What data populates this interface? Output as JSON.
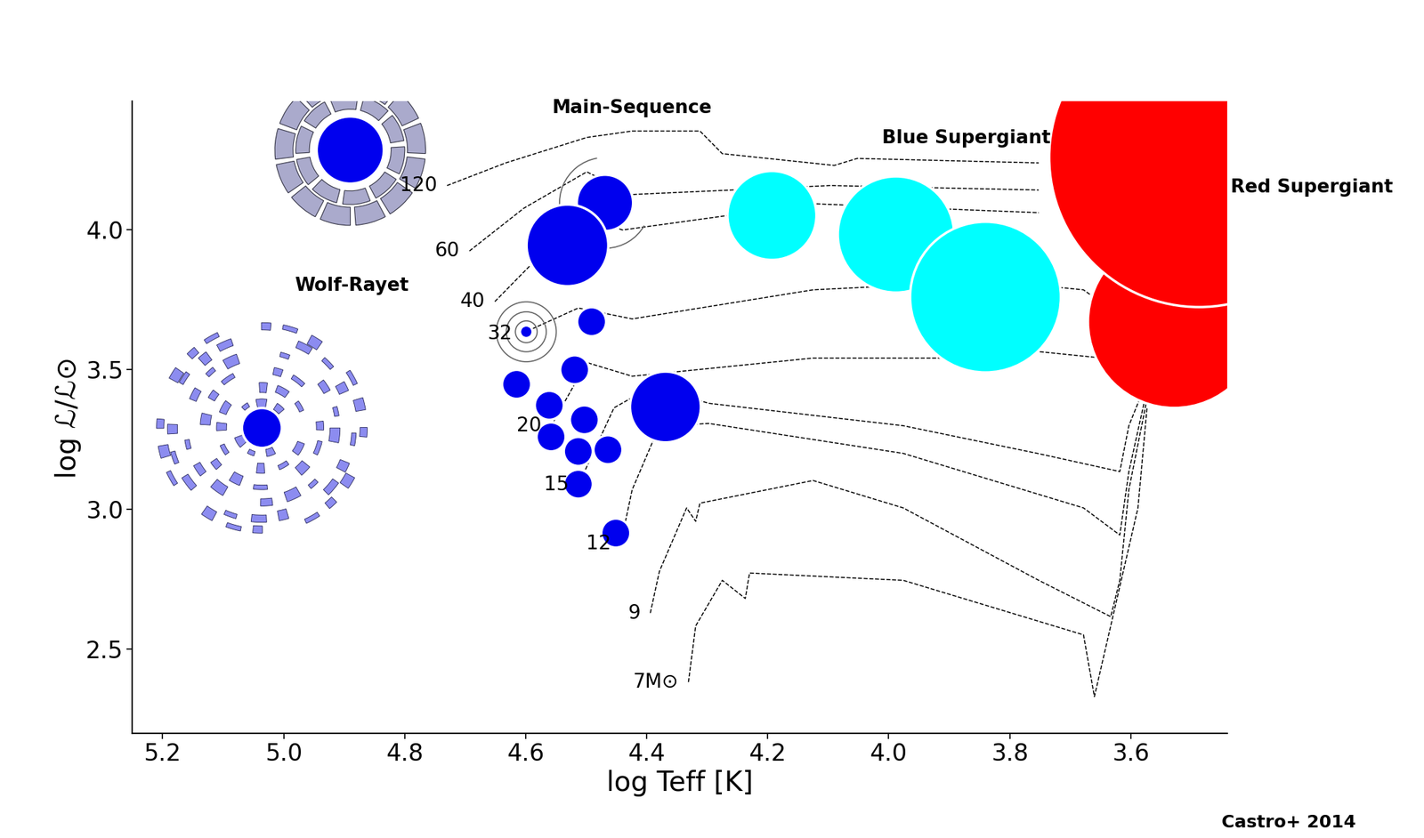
{
  "chart_data": {
    "type": "scatter",
    "xlabel": "log Teff [K]",
    "ylabel": "log ℒ/ℒ⊙",
    "xlim": [
      5.25,
      3.44
    ],
    "ylim": [
      2.2,
      4.46
    ],
    "xticks": [
      5.2,
      5.0,
      4.8,
      4.6,
      4.4,
      4.2,
      4.0,
      3.8,
      3.6
    ],
    "yticks": [
      2.5,
      3.0,
      3.5,
      4.0
    ],
    "annotations": [
      "Main-Sequence",
      "Blue Supergiant",
      "Red Supergiant",
      "Wolf-Rayet"
    ],
    "source": "Castro+ 2014",
    "series": [
      {
        "name": "120",
        "type": "line",
        "line_style": "dashed",
        "color": "#000000",
        "x": [
          4.73,
          4.633,
          4.499,
          4.424,
          4.312,
          4.275,
          4.09,
          4.052,
          3.752
        ],
        "values": [
          4.159,
          4.24,
          4.331,
          4.354,
          4.354,
          4.273,
          4.231,
          4.256,
          4.24
        ]
      },
      {
        "name": "60",
        "type": "line",
        "line_style": "dashed",
        "color": "#000000",
        "x": [
          4.693,
          4.603,
          4.499,
          4.424,
          4.096,
          3.752
        ],
        "values": [
          3.925,
          4.078,
          4.208,
          4.127,
          4.159,
          4.143
        ]
      },
      {
        "name": "40",
        "type": "line",
        "line_style": "dashed",
        "color": "#000000",
        "x": [
          4.651,
          4.573,
          4.499,
          4.44,
          4.125,
          3.752
        ],
        "values": [
          3.744,
          3.916,
          4.045,
          4.0,
          4.094,
          4.062
        ]
      },
      {
        "name": "32",
        "type": "line",
        "line_style": "dashed",
        "color": "#000000",
        "x": [
          4.606,
          4.513,
          4.424,
          4.125,
          3.827,
          3.678,
          3.573
        ],
        "values": [
          3.63,
          3.721,
          3.682,
          3.786,
          3.818,
          3.786,
          3.623
        ]
      },
      {
        "name": "20",
        "type": "line",
        "line_style": "dashed",
        "color": "#000000",
        "x": [
          4.558,
          4.499,
          4.424,
          4.125,
          3.827,
          3.752,
          3.573
        ],
        "values": [
          3.299,
          3.526,
          3.477,
          3.542,
          3.542,
          3.565,
          3.526
        ]
      },
      {
        "name": "15",
        "type": "line",
        "line_style": "dashed",
        "color": "#000000",
        "x": [
          4.513,
          4.454,
          4.392,
          4.297,
          3.976,
          3.752,
          3.618,
          3.603,
          3.573
        ],
        "values": [
          3.088,
          3.364,
          3.44,
          3.38,
          3.3,
          3.2,
          3.136,
          3.3,
          3.461
        ]
      },
      {
        "name": "12",
        "type": "line",
        "line_style": "dashed",
        "color": "#000000",
        "x": [
          4.443,
          4.424,
          4.379,
          4.297,
          3.976,
          3.678,
          3.618,
          3.603,
          3.573
        ],
        "values": [
          2.877,
          3.071,
          3.299,
          3.308,
          3.201,
          3.006,
          2.909,
          3.136,
          3.429
        ]
      },
      {
        "name": "9",
        "type": "line",
        "line_style": "dashed",
        "color": "#000000",
        "x": [
          4.394,
          4.379,
          4.334,
          4.319,
          4.312,
          4.125,
          3.976,
          3.752,
          3.633,
          3.618,
          3.603,
          3.573
        ],
        "values": [
          2.63,
          2.779,
          3.006,
          2.958,
          3.023,
          3.104,
          3.006,
          2.747,
          2.617,
          2.747,
          3.071,
          3.396
        ]
      },
      {
        "name": "7M⊙",
        "type": "line",
        "line_style": "dashed",
        "color": "#000000",
        "x": [
          4.331,
          4.319,
          4.275,
          4.237,
          4.23,
          3.976,
          3.678,
          3.66,
          3.633,
          3.588,
          3.573
        ],
        "values": [
          2.383,
          2.584,
          2.747,
          2.682,
          2.773,
          2.747,
          2.552,
          2.331,
          2.584,
          3.006,
          3.364
        ]
      },
      {
        "type": "scatter",
        "marker": "circle",
        "color": "#0000ee",
        "x": [
          4.89,
          5.036
        ],
        "values": [
          4.286,
          3.292
        ],
        "sizes": [
          37,
          22
        ]
      },
      {
        "type": "scatter",
        "marker": "circle",
        "color": "#0000ee",
        "x": [
          4.469,
          4.531,
          4.599,
          4.491,
          4.519,
          4.615,
          4.561,
          4.503,
          4.558,
          4.513,
          4.464,
          4.513,
          4.451,
          4.369
        ],
        "values": [
          4.097,
          3.945,
          3.636,
          3.672,
          3.5,
          3.448,
          3.373,
          3.321,
          3.26,
          3.208,
          3.214,
          3.091,
          2.916,
          3.367
        ],
        "sizes": [
          31,
          45,
          7,
          16,
          16,
          16,
          16,
          16,
          16,
          16,
          16,
          16,
          16,
          39
        ]
      },
      {
        "type": "scatter",
        "marker": "circle",
        "color": "#00ffff",
        "x": [
          4.193,
          3.988,
          3.84
        ],
        "values": [
          4.052,
          3.984,
          3.76
        ],
        "sizes": [
          49,
          64,
          83
        ]
      },
      {
        "type": "scatter",
        "marker": "circle",
        "color": "#ff0000",
        "x": [
          3.528,
          3.487
        ],
        "values": [
          3.672,
          4.26
        ],
        "sizes": [
          95,
          165
        ]
      }
    ]
  }
}
